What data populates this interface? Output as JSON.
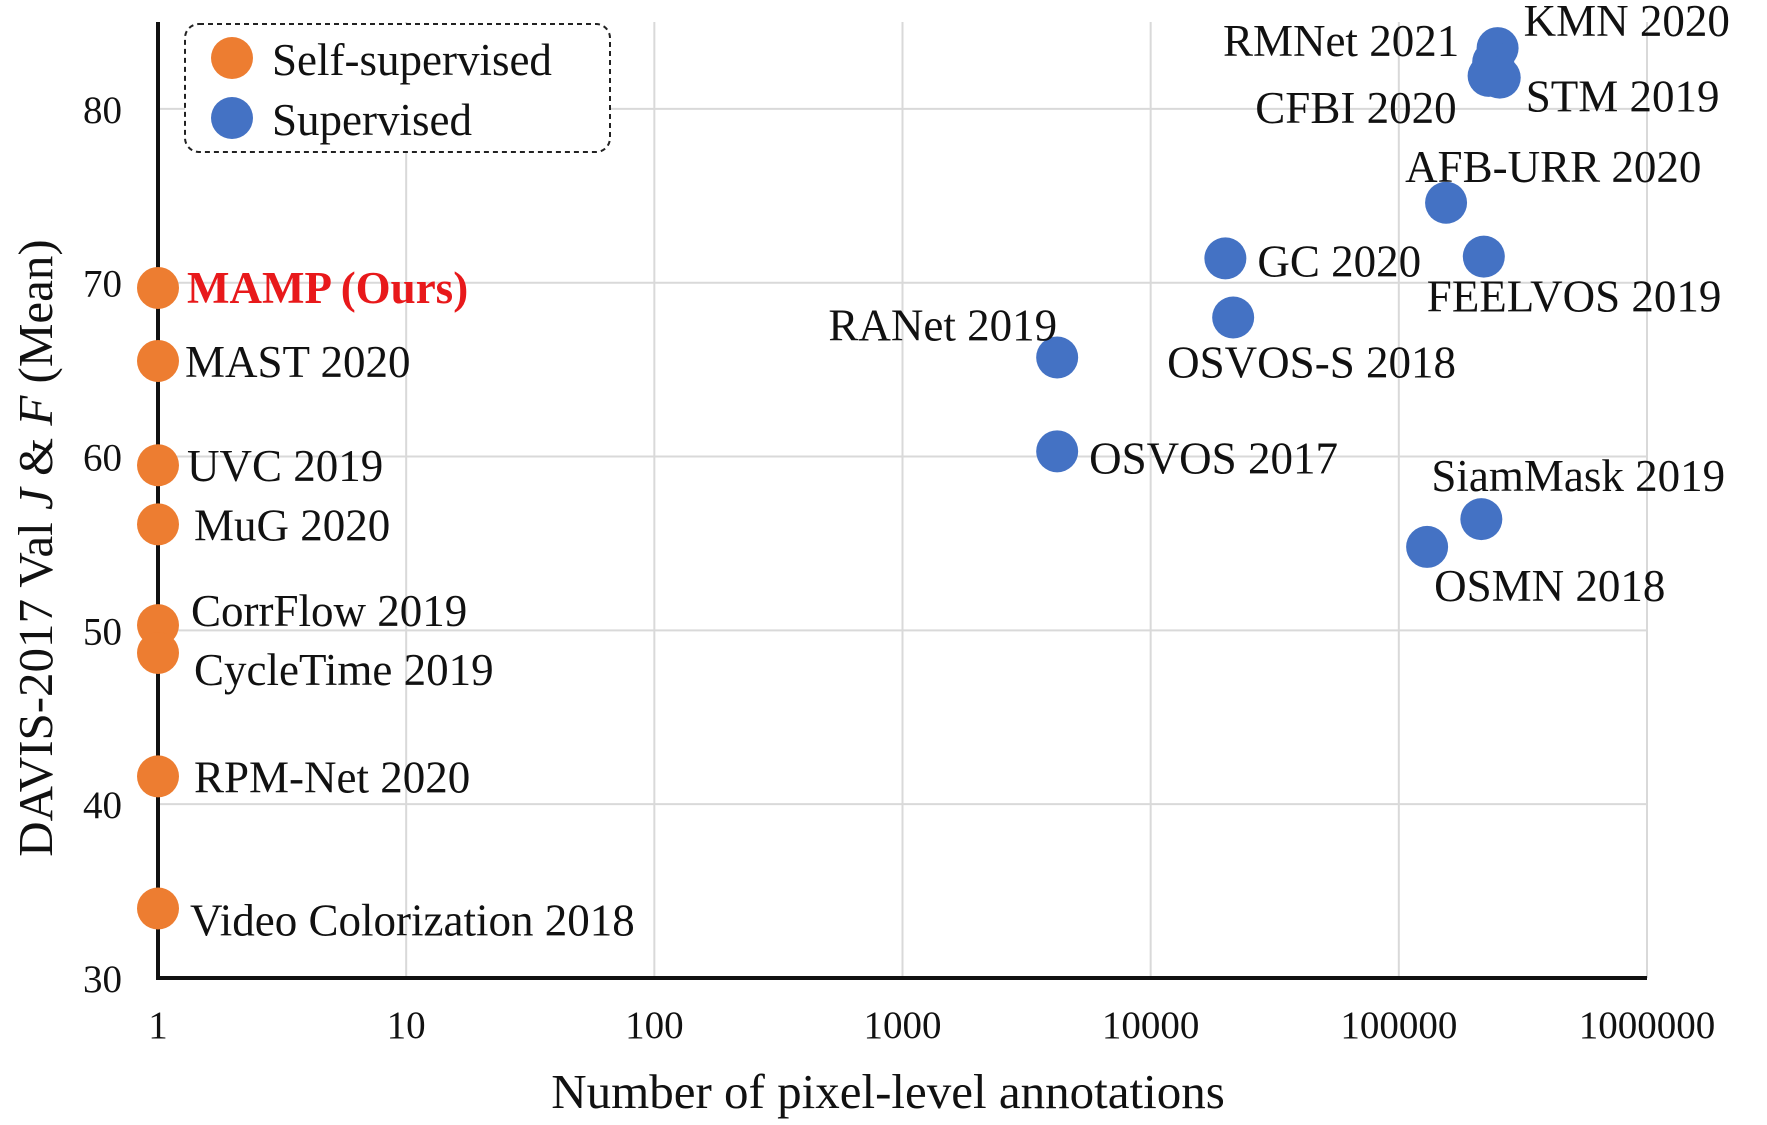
{
  "chart_data": {
    "type": "scatter",
    "x_scale": "log",
    "xlabel": "Number of pixel-level annotations",
    "ylabel": {
      "prefix": "DAVIS-2017 Val ",
      "j": "J",
      "amp": " & ",
      "f": "F",
      "suffix": " (Mean)"
    },
    "xlim": [
      1,
      1000000
    ],
    "ylim": [
      30,
      85
    ],
    "x_ticks": [
      "1",
      "10",
      "100",
      "1000",
      "10000",
      "100000",
      "1000000"
    ],
    "y_ticks": [
      "30",
      "40",
      "50",
      "60",
      "70",
      "80"
    ],
    "grid": true,
    "legend_position": "top-left",
    "legend": [
      "Self-supervised",
      "Supervised"
    ],
    "colors": {
      "Self-supervised": "#ED7D31",
      "Supervised": "#4472C4",
      "highlight": "#E8191B"
    },
    "series": [
      {
        "name": "Self-supervised",
        "points": [
          {
            "label": "MAMP (Ours)",
            "x": 1,
            "y": 69.7,
            "highlight": true
          },
          {
            "label": "MAST 2020",
            "x": 1,
            "y": 65.5
          },
          {
            "label": "UVC 2019",
            "x": 1,
            "y": 59.5
          },
          {
            "label": "MuG 2020",
            "x": 1,
            "y": 56.1
          },
          {
            "label": "CorrFlow 2019",
            "x": 1,
            "y": 50.3
          },
          {
            "label": "CycleTime 2019",
            "x": 1,
            "y": 48.7
          },
          {
            "label": "RPM-Net 2020",
            "x": 1,
            "y": 41.6
          },
          {
            "label": "Video Colorization 2018",
            "x": 1,
            "y": 34.0
          }
        ]
      },
      {
        "name": "Supervised",
        "points": [
          {
            "label": "KMN 2020",
            "x": 250000,
            "y": 83.5
          },
          {
            "label": "RMNet 2021",
            "x": 240000,
            "y": 82.7
          },
          {
            "label": "STM 2019",
            "x": 255000,
            "y": 81.8
          },
          {
            "label": "CFBI 2020",
            "x": 230000,
            "y": 81.9
          },
          {
            "label": "AFB-URR 2020",
            "x": 155000,
            "y": 74.6
          },
          {
            "label": "FEELVOS 2019",
            "x": 220000,
            "y": 71.5
          },
          {
            "label": "GC 2020",
            "x": 20000,
            "y": 71.4
          },
          {
            "label": "OSVOS-S 2018",
            "x": 21500,
            "y": 68.0
          },
          {
            "label": "RANet 2019",
            "x": 4200,
            "y": 65.7
          },
          {
            "label": "OSVOS 2017",
            "x": 4200,
            "y": 60.3
          },
          {
            "label": "SiamMask 2019",
            "x": 215000,
            "y": 56.4
          },
          {
            "label": "OSMN 2018",
            "x": 130000,
            "y": 54.8
          }
        ]
      }
    ]
  }
}
